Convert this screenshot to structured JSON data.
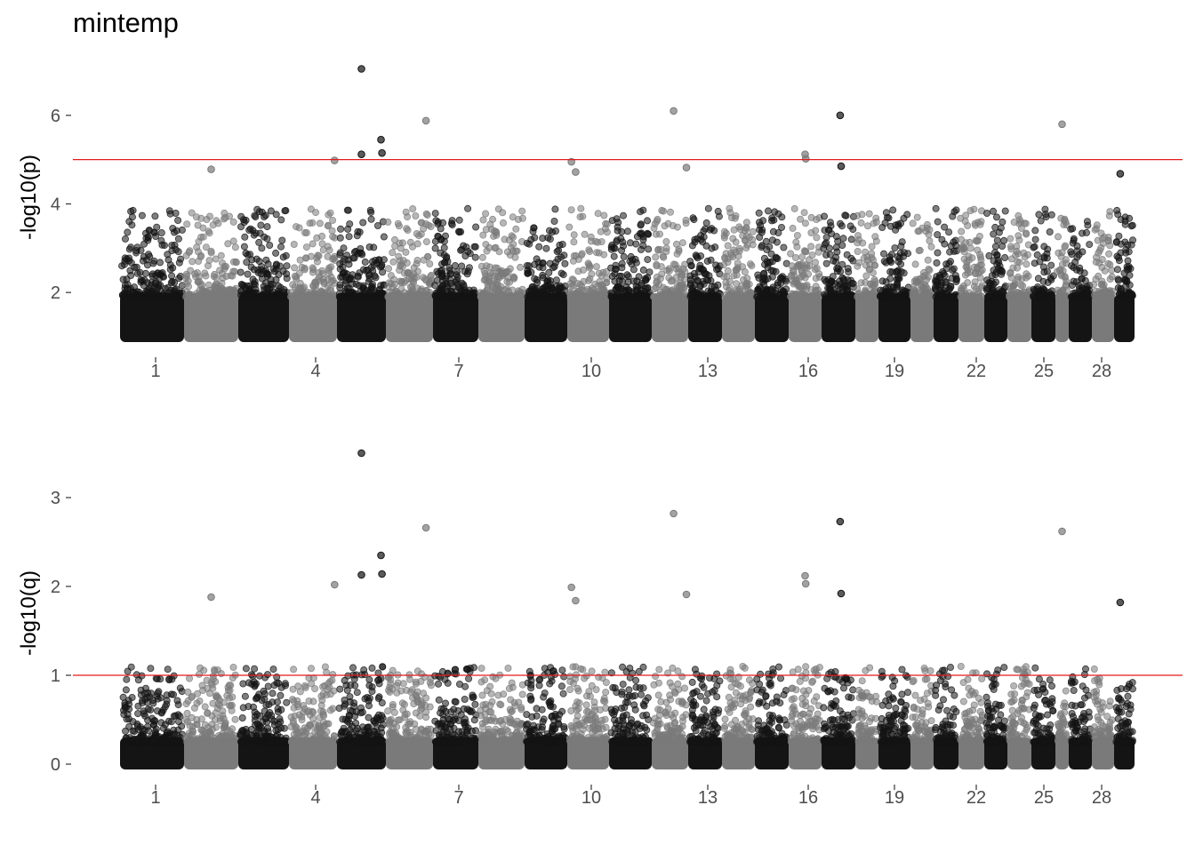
{
  "title": "mintemp",
  "chart_data": [
    {
      "type": "scatter",
      "ylabel": "-log10(p)",
      "ylim": [
        0.9,
        7.2
      ],
      "yticks": [
        2,
        4,
        6
      ],
      "threshold": 5,
      "threshold_color": "#e31a1c",
      "x_ticks": [
        "1",
        "4",
        "7",
        "10",
        "13",
        "16",
        "19",
        "22",
        "25",
        "28"
      ],
      "grid": false,
      "colors": [
        "#141414",
        "#7a7a7a"
      ],
      "highlights": [
        {
          "chrom": 5,
          "pos": 0.5,
          "value": 7.05
        },
        {
          "chrom": 12,
          "pos": 0.6,
          "value": 6.1
        },
        {
          "chrom": 17,
          "pos": 0.55,
          "value": 6.0
        },
        {
          "chrom": 6,
          "pos": 0.85,
          "value": 5.88
        },
        {
          "chrom": 26,
          "pos": 0.5,
          "value": 5.8
        },
        {
          "chrom": 5,
          "pos": 0.9,
          "value": 5.45
        },
        {
          "chrom": 5,
          "pos": 0.92,
          "value": 5.15
        },
        {
          "chrom": 5,
          "pos": 0.5,
          "value": 5.12
        },
        {
          "chrom": 16,
          "pos": 0.5,
          "value": 5.12
        },
        {
          "chrom": 16,
          "pos": 0.52,
          "value": 5.02
        },
        {
          "chrom": 4,
          "pos": 0.95,
          "value": 4.98
        },
        {
          "chrom": 10,
          "pos": 0.1,
          "value": 4.95
        },
        {
          "chrom": 10,
          "pos": 0.2,
          "value": 4.72
        },
        {
          "chrom": 17,
          "pos": 0.58,
          "value": 4.85
        },
        {
          "chrom": 12,
          "pos": 0.95,
          "value": 4.82
        },
        {
          "chrom": 2,
          "pos": 0.5,
          "value": 4.78
        },
        {
          "chrom": 29,
          "pos": 0.3,
          "value": 4.68
        }
      ]
    },
    {
      "type": "scatter",
      "ylabel": "-log10(q)",
      "ylim": [
        -0.05,
        3.55
      ],
      "yticks": [
        0,
        1,
        2,
        3
      ],
      "threshold": 1,
      "threshold_color": "#e31a1c",
      "x_ticks": [
        "1",
        "4",
        "7",
        "10",
        "13",
        "16",
        "19",
        "22",
        "25",
        "28"
      ],
      "grid": false,
      "colors": [
        "#141414",
        "#7a7a7a"
      ],
      "highlights": [
        {
          "chrom": 5,
          "pos": 0.5,
          "value": 3.5
        },
        {
          "chrom": 12,
          "pos": 0.6,
          "value": 2.82
        },
        {
          "chrom": 17,
          "pos": 0.55,
          "value": 2.73
        },
        {
          "chrom": 6,
          "pos": 0.85,
          "value": 2.66
        },
        {
          "chrom": 26,
          "pos": 0.5,
          "value": 2.62
        },
        {
          "chrom": 5,
          "pos": 0.9,
          "value": 2.35
        },
        {
          "chrom": 5,
          "pos": 0.92,
          "value": 2.14
        },
        {
          "chrom": 5,
          "pos": 0.5,
          "value": 2.13
        },
        {
          "chrom": 16,
          "pos": 0.5,
          "value": 2.12
        },
        {
          "chrom": 16,
          "pos": 0.52,
          "value": 2.03
        },
        {
          "chrom": 4,
          "pos": 0.95,
          "value": 2.02
        },
        {
          "chrom": 10,
          "pos": 0.1,
          "value": 1.99
        },
        {
          "chrom": 10,
          "pos": 0.2,
          "value": 1.84
        },
        {
          "chrom": 17,
          "pos": 0.58,
          "value": 1.92
        },
        {
          "chrom": 12,
          "pos": 0.95,
          "value": 1.91
        },
        {
          "chrom": 2,
          "pos": 0.5,
          "value": 1.88
        },
        {
          "chrom": 29,
          "pos": 0.3,
          "value": 1.82
        }
      ]
    }
  ]
}
